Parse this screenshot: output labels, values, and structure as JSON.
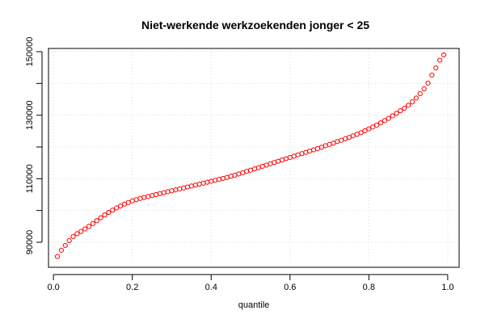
{
  "chart_data": {
    "type": "scatter",
    "title": "Niet-werkende werkzoekenden jonger < 25",
    "xlabel": "quantile",
    "ylabel": "",
    "xlim": [
      0.0,
      1.0
    ],
    "ylim": [
      83000,
      152000
    ],
    "x_ticks": [
      0.0,
      0.2,
      0.4,
      0.6,
      0.8,
      1.0
    ],
    "x_tick_labels": [
      "0.0",
      "0.2",
      "0.4",
      "0.6",
      "0.8",
      "1.0"
    ],
    "y_ticks": [
      90000,
      110000,
      130000,
      150000
    ],
    "y_tick_labels": [
      "90000",
      "110000",
      "130000",
      "150000"
    ],
    "grid": true,
    "point_color": "#ff0000",
    "series": [
      {
        "x": [
          0.01,
          0.02,
          0.03,
          0.04,
          0.05,
          0.06,
          0.07,
          0.08,
          0.09,
          0.1,
          0.11,
          0.12,
          0.13,
          0.14,
          0.15,
          0.16,
          0.17,
          0.18,
          0.19,
          0.2,
          0.21,
          0.22,
          0.23,
          0.24,
          0.25,
          0.26,
          0.27,
          0.28,
          0.29,
          0.3,
          0.31,
          0.32,
          0.33,
          0.34,
          0.35,
          0.36,
          0.37,
          0.38,
          0.39,
          0.4,
          0.41,
          0.42,
          0.43,
          0.44,
          0.45,
          0.46,
          0.47,
          0.48,
          0.49,
          0.5,
          0.51,
          0.52,
          0.53,
          0.54,
          0.55,
          0.56,
          0.57,
          0.58,
          0.59,
          0.6,
          0.61,
          0.62,
          0.63,
          0.64,
          0.65,
          0.66,
          0.67,
          0.68,
          0.69,
          0.7,
          0.71,
          0.72,
          0.73,
          0.74,
          0.75,
          0.76,
          0.77,
          0.78,
          0.79,
          0.8,
          0.81,
          0.82,
          0.83,
          0.84,
          0.85,
          0.86,
          0.87,
          0.88,
          0.89,
          0.9,
          0.91,
          0.92,
          0.93,
          0.94,
          0.95,
          0.96,
          0.97,
          0.98,
          0.99
        ],
        "y": [
          85500,
          87500,
          89000,
          90500,
          91800,
          92700,
          93400,
          94200,
          95000,
          95900,
          96800,
          97700,
          98600,
          99400,
          100100,
          100800,
          101400,
          102000,
          102500,
          103000,
          103400,
          103800,
          104100,
          104400,
          104700,
          105000,
          105300,
          105600,
          105900,
          106200,
          106500,
          106800,
          107100,
          107400,
          107700,
          108000,
          108300,
          108600,
          108900,
          109200,
          109500,
          109800,
          110100,
          110400,
          110800,
          111100,
          111500,
          111900,
          112300,
          112700,
          113100,
          113500,
          113900,
          114300,
          114700,
          115100,
          115500,
          115900,
          116300,
          116700,
          117100,
          117500,
          117900,
          118300,
          118700,
          119100,
          119500,
          119900,
          120400,
          120800,
          121200,
          121700,
          122100,
          122600,
          123000,
          123500,
          124000,
          124500,
          125100,
          125700,
          126300,
          126900,
          127600,
          128300,
          129000,
          129800,
          130600,
          131400,
          132200,
          133100,
          134200,
          135400,
          136800,
          138300,
          140100,
          142600,
          144900,
          147300,
          149000
        ]
      }
    ]
  }
}
